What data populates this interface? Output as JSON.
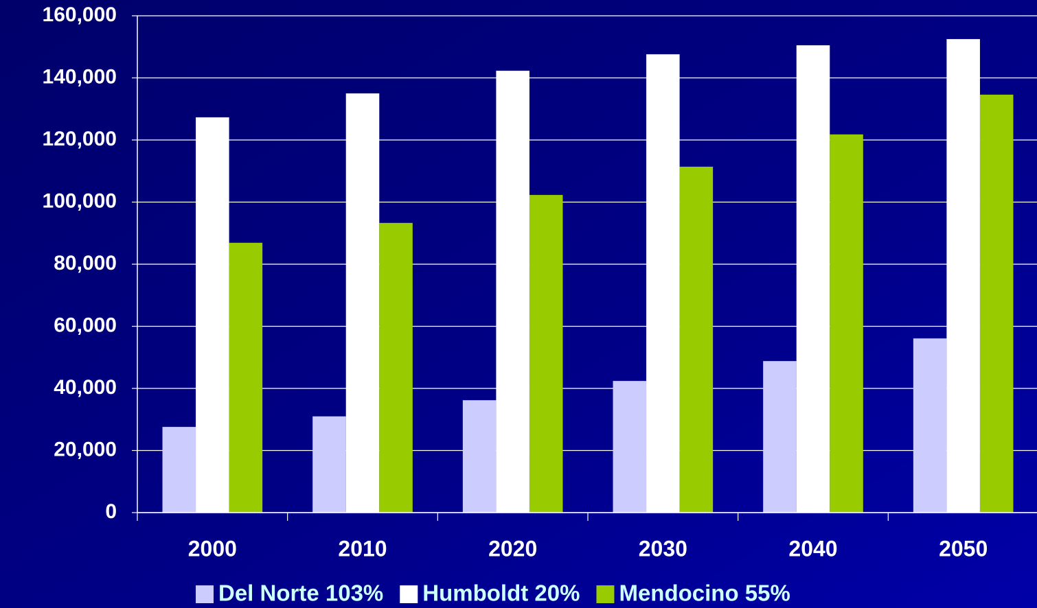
{
  "chart_data": {
    "type": "bar",
    "categories": [
      "2000",
      "2010",
      "2020",
      "2030",
      "2040",
      "2050"
    ],
    "series": [
      {
        "name": "Del Norte 103%",
        "color": "#ccccff",
        "values": [
          27600,
          31000,
          36200,
          42400,
          48800,
          56100
        ]
      },
      {
        "name": "Humboldt 20%",
        "color": "#ffffff",
        "values": [
          127300,
          135000,
          142300,
          147600,
          150500,
          152500
        ]
      },
      {
        "name": "Mendocino 55%",
        "color": "#99cc00",
        "values": [
          86900,
          93300,
          102300,
          111400,
          121800,
          134600
        ]
      }
    ],
    "ylim": [
      0,
      160000
    ],
    "yticks": [
      0,
      {
        "value": 20000,
        "label": "20,000"
      },
      {
        "value": 40000,
        "label": "40,000"
      },
      {
        "value": 60000,
        "label": "60,000"
      },
      {
        "value": 80000,
        "label": "80,000"
      },
      {
        "value": 100000,
        "label": "100,000"
      },
      {
        "value": 120000,
        "label": "120,000"
      },
      {
        "value": 140000,
        "label": "140,000"
      },
      {
        "value": 160000,
        "label": "160,000"
      }
    ],
    "grid": true,
    "legend": "bottom"
  }
}
